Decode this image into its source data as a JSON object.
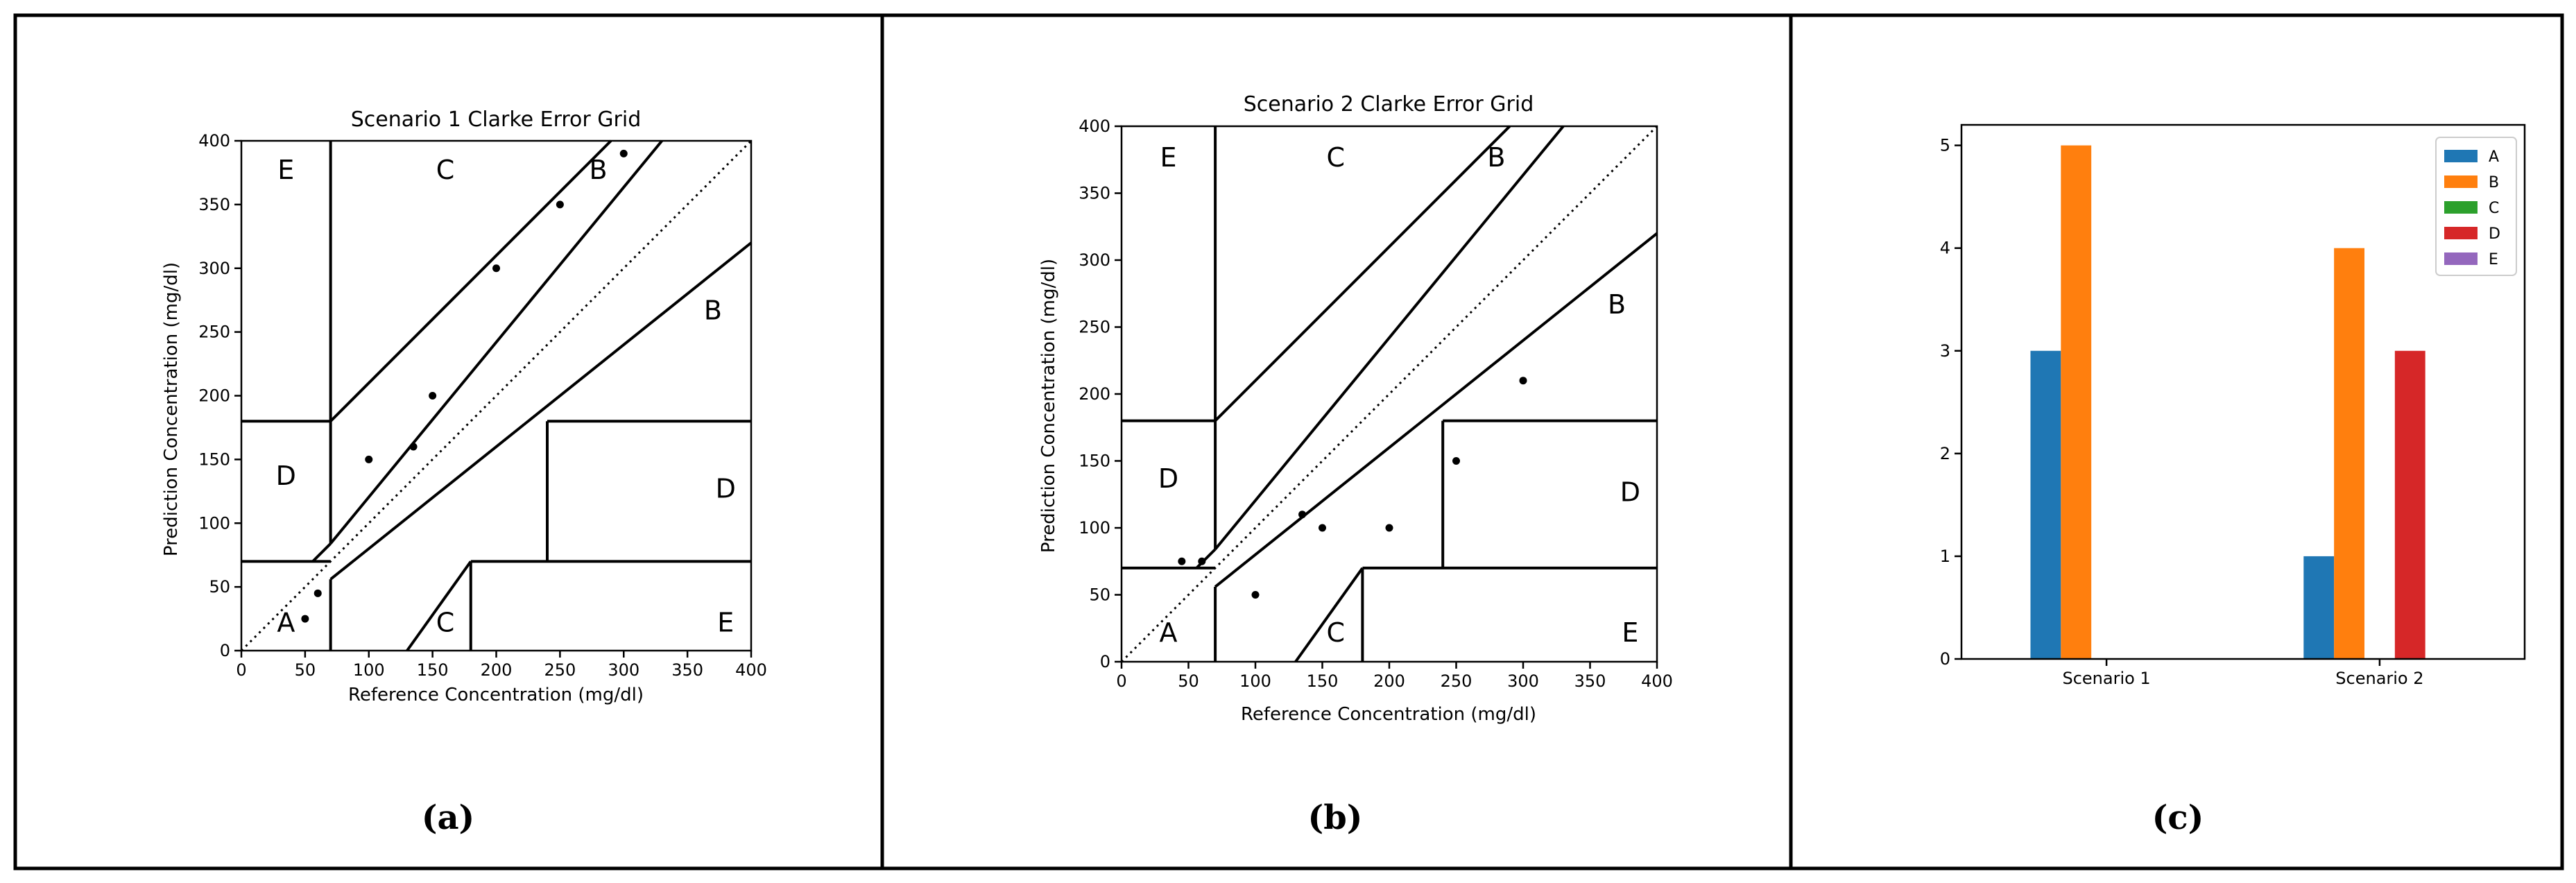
{
  "captions": [
    "(a)",
    "(b)",
    "(c)"
  ],
  "chart_data": [
    {
      "type": "scatter",
      "title": "Scenario 1 Clarke Error Grid",
      "xlabel": "Reference Concentration (mg/dl)",
      "ylabel": "Prediction Concentration (mg/dl)",
      "xlim": [
        0,
        400
      ],
      "ylim": [
        0,
        400
      ],
      "ticks": [
        "0",
        "50",
        "100",
        "150",
        "200",
        "250",
        "300",
        "350",
        "400"
      ],
      "zones": [
        "A",
        "B",
        "B",
        "C",
        "C",
        "D",
        "D",
        "E",
        "E"
      ],
      "points": [
        [
          50,
          25
        ],
        [
          60,
          45
        ],
        [
          100,
          150
        ],
        [
          135,
          160
        ],
        [
          150,
          200
        ],
        [
          200,
          300
        ],
        [
          250,
          350
        ],
        [
          300,
          390
        ]
      ]
    },
    {
      "type": "scatter",
      "title": "Scenario 2 Clarke Error Grid",
      "xlabel": "Reference Concentration (mg/dl)",
      "ylabel": "Prediction Concentration (mg/dl)",
      "xlim": [
        0,
        400
      ],
      "ylim": [
        0,
        400
      ],
      "ticks": [
        "0",
        "50",
        "100",
        "150",
        "200",
        "250",
        "300",
        "350",
        "400"
      ],
      "zones": [
        "A",
        "B",
        "B",
        "C",
        "C",
        "D",
        "D",
        "E",
        "E"
      ],
      "points": [
        [
          45,
          75
        ],
        [
          60,
          75
        ],
        [
          100,
          50
        ],
        [
          135,
          110
        ],
        [
          150,
          100
        ],
        [
          200,
          100
        ],
        [
          250,
          150
        ],
        [
          300,
          210
        ]
      ]
    },
    {
      "type": "bar",
      "categories": [
        "Scenario 1",
        "Scenario 2"
      ],
      "series": [
        {
          "name": "A",
          "color": "#1f77b4",
          "values": [
            3,
            1
          ]
        },
        {
          "name": "B",
          "color": "#ff7f0e",
          "values": [
            5,
            4
          ]
        },
        {
          "name": "C",
          "color": "#2ca02c",
          "values": [
            0,
            0
          ]
        },
        {
          "name": "D",
          "color": "#d62728",
          "values": [
            0,
            3
          ]
        },
        {
          "name": "E",
          "color": "#9467bd",
          "values": [
            0,
            0
          ]
        }
      ],
      "ylim": [
        0,
        5.2
      ],
      "yticks": [
        "0",
        "1",
        "2",
        "3",
        "4",
        "5"
      ],
      "legend": "top-right"
    }
  ]
}
